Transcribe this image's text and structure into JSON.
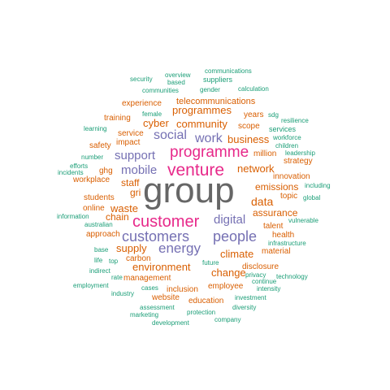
{
  "colors": {
    "tier_largest": "#666666",
    "tier_large": "#e7298a",
    "tier_medium": "#7570b3",
    "tier_small": "#d95f02",
    "tier_smallest": "#1b9e77"
  },
  "words": [
    {
      "text": "group",
      "tier": 0
    },
    {
      "text": "venture",
      "tier": 1
    },
    {
      "text": "programme",
      "tier": 1
    },
    {
      "text": "customer",
      "tier": 1
    },
    {
      "text": "customers",
      "tier": 2
    },
    {
      "text": "people",
      "tier": 2
    },
    {
      "text": "energy",
      "tier": 2
    },
    {
      "text": "social",
      "tier": 2
    },
    {
      "text": "work",
      "tier": 2
    },
    {
      "text": "digital",
      "tier": 2
    },
    {
      "text": "support",
      "tier": 2
    },
    {
      "text": "mobile",
      "tier": 2
    },
    {
      "text": "programmes",
      "tier": 3
    },
    {
      "text": "community",
      "tier": 3
    },
    {
      "text": "cyber",
      "tier": 3
    },
    {
      "text": "business",
      "tier": 3
    },
    {
      "text": "network",
      "tier": 3
    },
    {
      "text": "data",
      "tier": 3
    },
    {
      "text": "climate",
      "tier": 3
    },
    {
      "text": "change",
      "tier": 3
    },
    {
      "text": "supply",
      "tier": 3
    },
    {
      "text": "environment",
      "tier": 3
    },
    {
      "text": "waste",
      "tier": 3
    },
    {
      "text": "chain",
      "tier": 3
    },
    {
      "text": "staff",
      "tier": 3
    },
    {
      "text": "gri",
      "tier": 3
    },
    {
      "text": "emissions",
      "tier": 3
    },
    {
      "text": "assurance",
      "tier": 3
    },
    {
      "text": "experience",
      "tier": 4
    },
    {
      "text": "telecommunications",
      "tier": 4
    },
    {
      "text": "training",
      "tier": 4
    },
    {
      "text": "service",
      "tier": 4
    },
    {
      "text": "impact",
      "tier": 4
    },
    {
      "text": "safety",
      "tier": 4
    },
    {
      "text": "scope",
      "tier": 4
    },
    {
      "text": "years",
      "tier": 4
    },
    {
      "text": "million",
      "tier": 4
    },
    {
      "text": "innovation",
      "tier": 4
    },
    {
      "text": "strategy",
      "tier": 4
    },
    {
      "text": "ghg",
      "tier": 4
    },
    {
      "text": "workplace",
      "tier": 4
    },
    {
      "text": "students",
      "tier": 4
    },
    {
      "text": "online",
      "tier": 4
    },
    {
      "text": "approach",
      "tier": 4
    },
    {
      "text": "topic",
      "tier": 4
    },
    {
      "text": "talent",
      "tier": 4
    },
    {
      "text": "health",
      "tier": 4
    },
    {
      "text": "material",
      "tier": 4
    },
    {
      "text": "disclosure",
      "tier": 4
    },
    {
      "text": "employee",
      "tier": 4
    },
    {
      "text": "inclusion",
      "tier": 4
    },
    {
      "text": "management",
      "tier": 4
    },
    {
      "text": "carbon",
      "tier": 4
    },
    {
      "text": "website",
      "tier": 4
    },
    {
      "text": "education",
      "tier": 4
    },
    {
      "text": "communications",
      "tier": 5
    },
    {
      "text": "overview",
      "tier": 5
    },
    {
      "text": "security",
      "tier": 5
    },
    {
      "text": "based",
      "tier": 5
    },
    {
      "text": "suppliers",
      "tier": 5
    },
    {
      "text": "communities",
      "tier": 5
    },
    {
      "text": "gender",
      "tier": 5
    },
    {
      "text": "calculation",
      "tier": 5
    },
    {
      "text": "female",
      "tier": 5
    },
    {
      "text": "sdg",
      "tier": 5
    },
    {
      "text": "resilience",
      "tier": 5
    },
    {
      "text": "learning",
      "tier": 5
    },
    {
      "text": "services",
      "tier": 5
    },
    {
      "text": "children",
      "tier": 5
    },
    {
      "text": "workforce",
      "tier": 5
    },
    {
      "text": "leadership",
      "tier": 5
    },
    {
      "text": "number",
      "tier": 5
    },
    {
      "text": "efforts",
      "tier": 5
    },
    {
      "text": "incidents",
      "tier": 5
    },
    {
      "text": "including",
      "tier": 5
    },
    {
      "text": "global",
      "tier": 5
    },
    {
      "text": "information",
      "tier": 5
    },
    {
      "text": "australian",
      "tier": 5
    },
    {
      "text": "vulnerable",
      "tier": 5
    },
    {
      "text": "infrastructure",
      "tier": 5
    },
    {
      "text": "base",
      "tier": 5
    },
    {
      "text": "life",
      "tier": 5
    },
    {
      "text": "top",
      "tier": 5
    },
    {
      "text": "future",
      "tier": 5
    },
    {
      "text": "indirect",
      "tier": 5
    },
    {
      "text": "continue",
      "tier": 5
    },
    {
      "text": "privacy",
      "tier": 5
    },
    {
      "text": "technology",
      "tier": 5
    },
    {
      "text": "rate",
      "tier": 5
    },
    {
      "text": "employment",
      "tier": 5
    },
    {
      "text": "cases",
      "tier": 5
    },
    {
      "text": "intensity",
      "tier": 5
    },
    {
      "text": "industry",
      "tier": 5
    },
    {
      "text": "investment",
      "tier": 5
    },
    {
      "text": "assessment",
      "tier": 5
    },
    {
      "text": "diversity",
      "tier": 5
    },
    {
      "text": "marketing",
      "tier": 5
    },
    {
      "text": "protection",
      "tier": 5
    },
    {
      "text": "development",
      "tier": 5
    },
    {
      "text": "company",
      "tier": 5
    }
  ]
}
